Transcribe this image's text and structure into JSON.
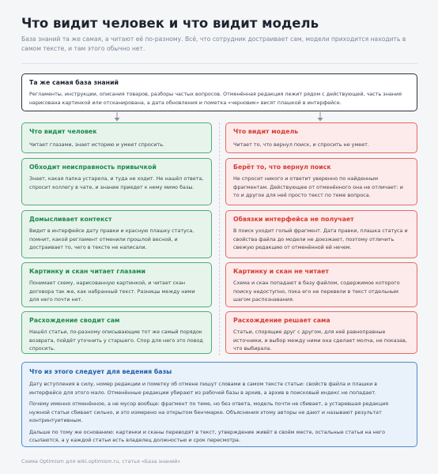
{
  "header": {
    "title": "Что видит человек и что видит модель",
    "subtitle": "База знаний та же самая, а читают её по-разному. Всё, что сотрудник достраивает сам, модели приходится находить в самом тексте, и там этого обычно нет."
  },
  "source": {
    "title": "Та же самая база знаний",
    "text": "Регламенты, инструкции, описания товаров, разборы частых вопросов. Отменённая редакция лежит рядом с действующей, часть знания нарисована картинкой или отсканирована, а дата обновления и пометка «черновик» висят плашкой в интерфейсе."
  },
  "columns": [
    {
      "cards": [
        {
          "title": "Что видит человек",
          "text": "Читает глазами, знает историю и умеет спросить."
        },
        {
          "title": "Обходит неисправность привычкой",
          "text": "Знает, какая папка устарела, и туда не ходит. Не нашёл ответа, спросит коллегу в чате, и знание приедет к нему мимо базы."
        },
        {
          "title": "Домысливает контекст",
          "text": "Видит в интерфейсе дату правки и красную плашку статуса, помнит, какой регламент отменили прошлой весной, и достраивает то, чего в тексте не написали."
        },
        {
          "title": "Картинку и скан читает глазами",
          "text": "Понимает схему, нарисованную картинкой, и читает скан договора так же, как набранный текст. Разницы между ними для него почти нет."
        },
        {
          "title": "Расхождение сводит сам",
          "text": "Нашёл статьи, по-разному описывающие тот же самый порядок возврата, пойдёт уточнить у старшего. Спор для него это повод спросить."
        }
      ]
    },
    {
      "cards": [
        {
          "title": "Что видит модель",
          "text": "Читает то, что вернул поиск, и спросить не умеет."
        },
        {
          "title": "Берёт то, что вернул поиск",
          "text": "Не спросит никого и ответит уверенно по найденным фрагментам. Действующее от отменённого она не отличает: и то и другое для неё просто текст по теме вопроса."
        },
        {
          "title": "Обвязки интерфейса не получает",
          "text": "В поиск уходит голый фрагмент. Дата правки, плашка статуса и свойства файла до модели не доезжают, поэтому отличить свежую редакцию от отменённой ей нечем."
        },
        {
          "title": "Картинку и скан не читает",
          "text": "Схема и скан попадают в базу файлом, содержимое которого поиску недоступно, пока его не перевели в текст отдельным шагом распознавания."
        },
        {
          "title": "Расхождение решает сама",
          "text": "Статьи, спорящие друг с другом, для неё равноправные источники, и выбор между ними она сделает молча, не показав, что выбирала."
        }
      ]
    }
  ],
  "conclusion": {
    "title": "Что из этого следует для ведения базы",
    "paragraphs": [
      "Дату вступления в силу, номер редакции и пометку об отмене пишут словами в самом тексте статьи: свойств файла и плашки в интерфейсе для этого мало. Отменённые редакции убирают из рабочей базы в архив, а архив в поисковый индекс не попадает.",
      "Почему именно отменённое, а не мусор вообще: фрагмент по теме, но без ответа, модель почти не сбивает, а устаревшая редакция нужной статьи сбивает сильно, и это измерено на открытом бенчмарке. Объяснения этому авторы не дают и называют результат контринтуитивным.",
      "Дальше по тому же основанию: картинки и сканы переводят в текст, утверждение живёт в своём месте, остальные статьи на него ссылаются, а у каждой статьи есть владелец должностью и срок пересмотра."
    ]
  },
  "footer": "Схема Optimism для wiki.optimism.ru, статья «База знаний»"
}
